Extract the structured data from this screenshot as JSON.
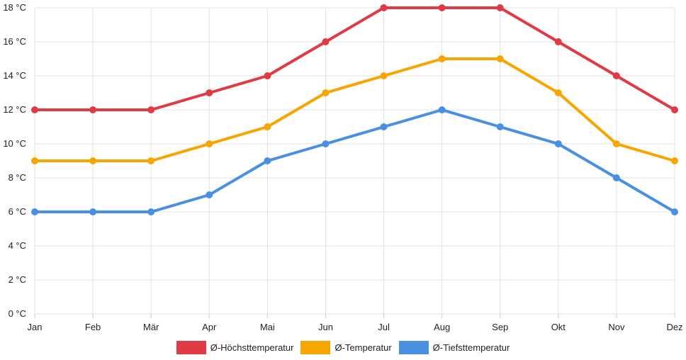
{
  "chart_data": {
    "type": "line",
    "categories": [
      "Jan",
      "Feb",
      "Mär",
      "Apr",
      "Mai",
      "Jun",
      "Jul",
      "Aug",
      "Sep",
      "Okt",
      "Nov",
      "Dez"
    ],
    "y_unit": "°C",
    "ylim": [
      0,
      18
    ],
    "y_ticks": [
      0,
      2,
      4,
      6,
      8,
      10,
      12,
      14,
      16,
      18
    ],
    "grid": true,
    "legend_position": "bottom",
    "series": [
      {
        "name": "Ø-Höchsttemperatur",
        "color": "#e03a45",
        "values": [
          12,
          12,
          12,
          13,
          14,
          16,
          18,
          18,
          18,
          16,
          14,
          12
        ]
      },
      {
        "name": "Ø-Temperatur",
        "color": "#f8a500",
        "values": [
          9,
          9,
          9,
          10,
          11,
          13,
          14,
          15,
          15,
          13,
          10,
          9
        ]
      },
      {
        "name": "Ø-Tiefsttemperatur",
        "color": "#4a90e2",
        "values": [
          6,
          6,
          6,
          7,
          9,
          10,
          11,
          12,
          11,
          10,
          8,
          6
        ]
      }
    ]
  }
}
